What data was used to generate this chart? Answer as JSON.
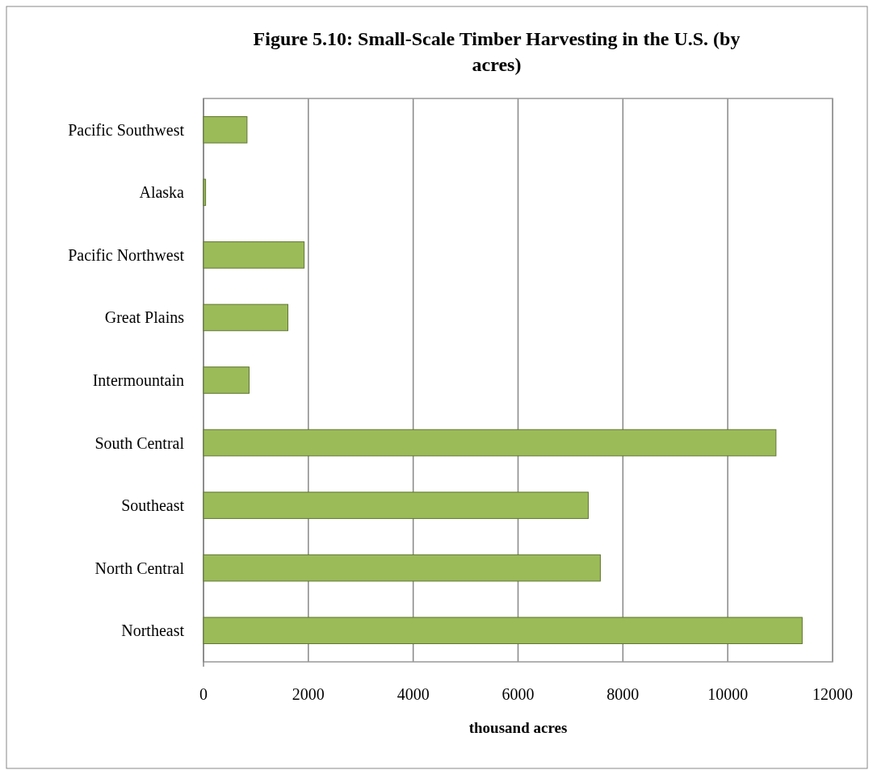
{
  "chart_data": {
    "type": "bar",
    "orientation": "horizontal",
    "title": "Figure 5.10: Small-Scale Timber Harvesting in the U.S. (by acres)",
    "xlabel": "thousand acres",
    "categories": [
      "Pacific Southwest",
      "Alaska",
      "Pacific Northwest",
      "Great Plains",
      "Intermountain",
      "South Central",
      "Southeast",
      "North Central",
      "Northeast"
    ],
    "values": [
      830,
      40,
      1920,
      1610,
      870,
      10920,
      7340,
      7570,
      11420
    ],
    "color": "#9bbb59",
    "xlim": [
      0,
      12000
    ],
    "xticks": [
      0,
      2000,
      4000,
      6000,
      8000,
      10000,
      12000
    ],
    "grid": "x"
  }
}
